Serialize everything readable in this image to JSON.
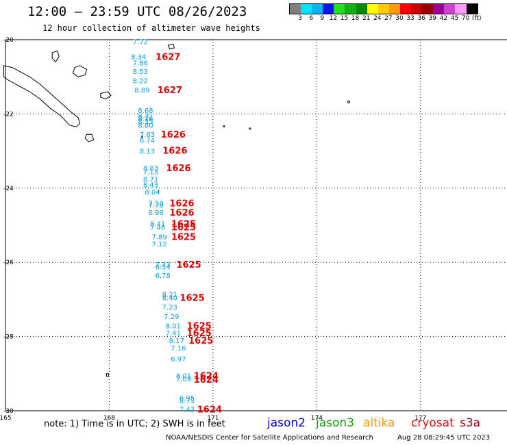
{
  "header": {
    "title": "12:00 — 23:59 UTC 08/26/2023",
    "subtitle": "12 hour collection of altimeter wave heights"
  },
  "colorbar": {
    "colors": [
      "#808080",
      "#00e5ff",
      "#0ab4f0",
      "#1010f0",
      "#20e020",
      "#10b010",
      "#008a00",
      "#ffff00",
      "#ffcc00",
      "#ff9900",
      "#ff0000",
      "#cc0000",
      "#990000",
      "#990099",
      "#cc44cc",
      "#ff99ff",
      "#000000"
    ],
    "labels": [
      "3",
      "6",
      "9",
      "12",
      "15",
      "18",
      "21",
      "24",
      "27",
      "30",
      "33",
      "36",
      "39",
      "42",
      "45",
      "70",
      "(ft)"
    ]
  },
  "map": {
    "lon_range": [
      165,
      179.5
    ],
    "lat_range": [
      -30,
      -20
    ],
    "lon_ticks": [
      "165",
      "168",
      "171",
      "174",
      "177"
    ],
    "lat_ticks": [
      "-20",
      "-22",
      "-24",
      "-26",
      "-28",
      "-30"
    ],
    "swh_color": "#0a9ee8",
    "time_color": "#e00000",
    "swh_readings": [
      {
        "lon": 168.9,
        "lat": -20.05,
        "label": "7.72"
      },
      {
        "lon": 168.85,
        "lat": -20.45,
        "label": "8.34"
      },
      {
        "lon": 168.9,
        "lat": -20.62,
        "label": "7.86"
      },
      {
        "lon": 168.9,
        "lat": -20.85,
        "label": "8.53"
      },
      {
        "lon": 168.9,
        "lat": -21.1,
        "label": "8.22"
      },
      {
        "lon": 168.95,
        "lat": -21.35,
        "label": "8.89"
      },
      {
        "lon": 169.05,
        "lat": -21.9,
        "label": "8.68"
      },
      {
        "lon": 169.05,
        "lat": -22.05,
        "label": "8.31"
      },
      {
        "lon": 169.05,
        "lat": -22.12,
        "label": "8.16"
      },
      {
        "lon": 169.05,
        "lat": -22.2,
        "label": "8.35"
      },
      {
        "lon": 169.05,
        "lat": -22.3,
        "label": "8.80"
      },
      {
        "lon": 169.1,
        "lat": -22.55,
        "label": "7.63"
      },
      {
        "lon": 169.1,
        "lat": -22.7,
        "label": "8.74"
      },
      {
        "lon": 169.1,
        "lat": -23.0,
        "label": "8.13"
      },
      {
        "lon": 169.2,
        "lat": -23.45,
        "label": "8.83"
      },
      {
        "lon": 169.2,
        "lat": -23.55,
        "label": "7.13"
      },
      {
        "lon": 169.2,
        "lat": -23.75,
        "label": "8.71"
      },
      {
        "lon": 169.2,
        "lat": -23.9,
        "label": "8.43"
      },
      {
        "lon": 169.25,
        "lat": -24.1,
        "label": "8.04"
      },
      {
        "lon": 169.35,
        "lat": -24.4,
        "label": "7.50"
      },
      {
        "lon": 169.35,
        "lat": -24.45,
        "label": "7.78"
      },
      {
        "lon": 169.35,
        "lat": -24.65,
        "label": "6.98"
      },
      {
        "lon": 169.4,
        "lat": -24.95,
        "label": "8.41"
      },
      {
        "lon": 169.4,
        "lat": -25.05,
        "label": "7.46"
      },
      {
        "lon": 169.45,
        "lat": -25.3,
        "label": "7.89"
      },
      {
        "lon": 169.45,
        "lat": -25.5,
        "label": "7.12"
      },
      {
        "lon": 169.55,
        "lat": -26.05,
        "label": "7.73"
      },
      {
        "lon": 169.55,
        "lat": -26.12,
        "label": "6.54"
      },
      {
        "lon": 169.55,
        "lat": -26.35,
        "label": "6.78"
      },
      {
        "lon": 169.75,
        "lat": -26.85,
        "label": "8.21"
      },
      {
        "lon": 169.75,
        "lat": -26.95,
        "label": "8.40"
      },
      {
        "lon": 169.75,
        "lat": -27.2,
        "label": "7.23"
      },
      {
        "lon": 169.8,
        "lat": -27.45,
        "label": "7.29"
      },
      {
        "lon": 169.85,
        "lat": -27.7,
        "label": "8.01"
      },
      {
        "lon": 169.85,
        "lat": -27.9,
        "label": "7.41"
      },
      {
        "lon": 169.95,
        "lat": -28.1,
        "label": "8.17"
      },
      {
        "lon": 170.0,
        "lat": -28.3,
        "label": "7.16"
      },
      {
        "lon": 170.0,
        "lat": -28.6,
        "label": "6.97"
      },
      {
        "lon": 170.15,
        "lat": -29.05,
        "label": "8.01"
      },
      {
        "lon": 170.15,
        "lat": -29.13,
        "label": "7.09"
      },
      {
        "lon": 170.25,
        "lat": -29.65,
        "label": "6.95"
      },
      {
        "lon": 170.25,
        "lat": -29.72,
        "label": "8.75"
      },
      {
        "lon": 170.25,
        "lat": -29.95,
        "label": "7.43"
      }
    ],
    "time_readings": [
      {
        "lon": 169.7,
        "lat": -20.45,
        "label": "1627"
      },
      {
        "lon": 169.75,
        "lat": -21.35,
        "label": "1627"
      },
      {
        "lon": 169.85,
        "lat": -22.55,
        "label": "1626"
      },
      {
        "lon": 169.9,
        "lat": -22.98,
        "label": "1626"
      },
      {
        "lon": 170.0,
        "lat": -23.45,
        "label": "1626"
      },
      {
        "lon": 170.1,
        "lat": -24.4,
        "label": "1626"
      },
      {
        "lon": 170.1,
        "lat": -24.65,
        "label": "1626"
      },
      {
        "lon": 170.15,
        "lat": -24.95,
        "label": "1625"
      },
      {
        "lon": 170.15,
        "lat": -25.05,
        "label": "1625"
      },
      {
        "lon": 170.15,
        "lat": -25.3,
        "label": "1625"
      },
      {
        "lon": 170.3,
        "lat": -26.05,
        "label": "1625"
      },
      {
        "lon": 170.4,
        "lat": -26.95,
        "label": "1625"
      },
      {
        "lon": 170.6,
        "lat": -27.7,
        "label": "1625"
      },
      {
        "lon": 170.6,
        "lat": -27.9,
        "label": "1625"
      },
      {
        "lon": 170.65,
        "lat": -28.1,
        "label": "1625"
      },
      {
        "lon": 170.8,
        "lat": -29.05,
        "label": "1624"
      },
      {
        "lon": 170.8,
        "lat": -29.15,
        "label": "1624"
      },
      {
        "lon": 170.9,
        "lat": -29.95,
        "label": "1624"
      }
    ],
    "islands": [
      {
        "name": "grande-terre",
        "lonlat": [
          [
            164.95,
            -20.7
          ],
          [
            165.2,
            -20.75
          ],
          [
            165.5,
            -20.9
          ],
          [
            165.7,
            -21.0
          ],
          [
            166.0,
            -21.2
          ],
          [
            166.3,
            -21.45
          ],
          [
            166.6,
            -21.7
          ],
          [
            166.9,
            -21.95
          ],
          [
            167.1,
            -22.1
          ],
          [
            167.15,
            -22.25
          ],
          [
            167.05,
            -22.35
          ],
          [
            166.85,
            -22.3
          ],
          [
            166.6,
            -22.05
          ],
          [
            166.3,
            -21.85
          ],
          [
            166.0,
            -21.6
          ],
          [
            165.7,
            -21.4
          ],
          [
            165.4,
            -21.25
          ],
          [
            165.1,
            -21.1
          ],
          [
            164.95,
            -21.0
          ]
        ]
      },
      {
        "name": "lifou",
        "lonlat": [
          [
            167.0,
            -20.75
          ],
          [
            167.15,
            -20.7
          ],
          [
            167.35,
            -20.8
          ],
          [
            167.3,
            -20.95
          ],
          [
            167.1,
            -21.0
          ],
          [
            166.95,
            -20.9
          ]
        ]
      },
      {
        "name": "ouvea",
        "lonlat": [
          [
            166.35,
            -20.35
          ],
          [
            166.5,
            -20.3
          ],
          [
            166.55,
            -20.45
          ],
          [
            166.45,
            -20.6
          ],
          [
            166.35,
            -20.5
          ]
        ]
      },
      {
        "name": "mare",
        "lonlat": [
          [
            167.75,
            -21.45
          ],
          [
            167.95,
            -21.4
          ],
          [
            168.05,
            -21.5
          ],
          [
            167.9,
            -21.6
          ],
          [
            167.75,
            -21.55
          ]
        ]
      },
      {
        "name": "ile-des-pins",
        "lonlat": [
          [
            167.35,
            -22.55
          ],
          [
            167.5,
            -22.55
          ],
          [
            167.55,
            -22.7
          ],
          [
            167.4,
            -22.75
          ],
          [
            167.3,
            -22.65
          ]
        ]
      },
      {
        "name": "walpole",
        "lonlat": [
          [
            168.93,
            -22.6
          ],
          [
            168.96,
            -22.6
          ],
          [
            168.96,
            -22.63
          ],
          [
            168.93,
            -22.63
          ]
        ]
      },
      {
        "name": "hunter",
        "lonlat": [
          [
            172.05,
            -22.38
          ],
          [
            172.09,
            -22.38
          ],
          [
            172.09,
            -22.41
          ],
          [
            172.05,
            -22.41
          ]
        ]
      },
      {
        "name": "matthew",
        "lonlat": [
          [
            171.3,
            -22.32
          ],
          [
            171.33,
            -22.32
          ],
          [
            171.33,
            -22.35
          ],
          [
            171.3,
            -22.35
          ]
        ]
      },
      {
        "name": "aneityum",
        "lonlat": [
          [
            169.7,
            -20.15
          ],
          [
            169.85,
            -20.12
          ],
          [
            169.88,
            -20.22
          ],
          [
            169.75,
            -20.25
          ]
        ]
      },
      {
        "name": "east-cape",
        "lonlat": [
          [
            174.9,
            -21.65
          ],
          [
            174.95,
            -21.65
          ],
          [
            174.95,
            -21.7
          ],
          [
            174.9,
            -21.7
          ]
        ]
      },
      {
        "name": "norfolk",
        "lonlat": [
          [
            167.92,
            -29.0
          ],
          [
            167.98,
            -29.0
          ],
          [
            167.98,
            -29.07
          ],
          [
            167.92,
            -29.07
          ]
        ]
      }
    ]
  },
  "footer": {
    "note": "note: 1) Time is in UTC; 2) SWH is in feet",
    "satellites": [
      {
        "name": "jason2",
        "color": "#0000ee"
      },
      {
        "name": "jason3",
        "color": "#10a010"
      },
      {
        "name": "altika",
        "color": "#ff9900"
      },
      {
        "name": "cryosat",
        "color": "#d81010"
      },
      {
        "name": "s3a",
        "color": "#a80010"
      }
    ],
    "credit": "NOAA/NESDIS Center for Satellite Applications and Research",
    "timestamp": "Aug 28 08:29:45 UTC 2023"
  }
}
